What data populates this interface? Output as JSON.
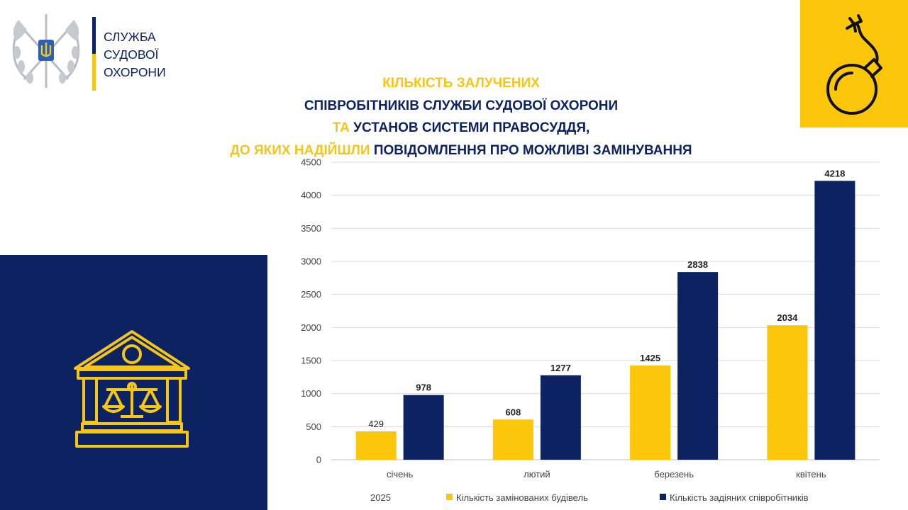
{
  "header": {
    "org_name_lines": [
      "СЛУЖБА",
      "СУДОВОЇ",
      "ОХОРОНИ"
    ]
  },
  "title": {
    "line1": "КІЛЬКІСТЬ ЗАЛУЧЕНИХ",
    "line2": "СПІВРОБІТНИКІВ СЛУЖБИ СУДОВОЇ ОХОРОНИ",
    "line3_a": "ТА",
    "line3_b": " УСТАНОВ СИСТЕМИ ПРАВОСУДДЯ,",
    "line4_a": "ДО ЯКИХ НАДІЙШЛИ",
    "line4_b": " ПОВІДОМЛЕННЯ ПРО МОЖЛИВІ ЗАМІНУВАННЯ"
  },
  "colors": {
    "brand_blue": "#0d2260",
    "brand_yellow": "#f5c518",
    "panel_yellow": "#fcc60a",
    "series_buildings": "#fcc60a",
    "series_employees": "#0d2260"
  },
  "icons": {
    "logo": "emblem-crossed-axes-trident-icon",
    "bomb_panel": "bomb-icon",
    "court_panel": "courthouse-scales-icon"
  },
  "chart_data": {
    "type": "bar",
    "categories": [
      "січень",
      "лютий",
      "березень",
      "квітень"
    ],
    "x_group_label": "2025",
    "series": [
      {
        "name": "Кількість замінованих будівель",
        "values": [
          429,
          608,
          1425,
          2034
        ],
        "color": "#fcc60a"
      },
      {
        "name": "Кількість задіяних співробітників",
        "values": [
          978,
          1277,
          2838,
          4218
        ],
        "color": "#0d2260"
      }
    ],
    "ylim": [
      0,
      4500
    ],
    "yticks": [
      0,
      500,
      1000,
      1500,
      2000,
      2500,
      3000,
      3500,
      4000,
      4500
    ],
    "grid": true,
    "legend_position": "bottom"
  }
}
